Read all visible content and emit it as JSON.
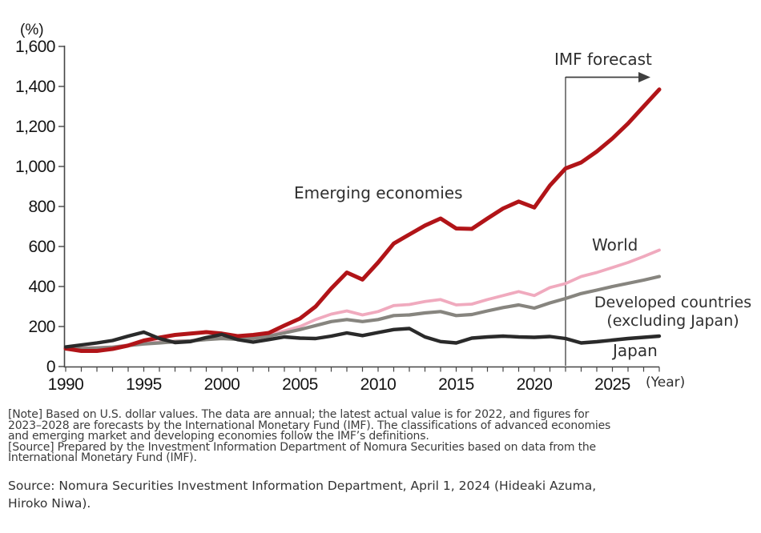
{
  "labels": {
    "unit": "(%)",
    "year": "(Year)",
    "imf_forecast": "IMF forecast",
    "emerging": "Emerging economies",
    "world": "World",
    "developed_1": "Developed countries",
    "developed_2": "(excluding Japan)",
    "japan": "Japan"
  },
  "notes": {
    "note": [
      "[Note] Based on U.S. dollar values. The data are annual; the latest actual value is for 2022, and figures for",
      "2023–2028 are forecasts by the International Monetary Fund (IMF). The classifications of advanced economies",
      "and emerging market and developing economies follow the IMF’s definitions."
    ],
    "source_note": [
      "[Source] Prepared by the Investment Information Department of Nomura Securities based on data from the",
      "International Monetary Fund (IMF)."
    ],
    "credit": [
      "Source: Nomura Securities Investment Information Department, April 1, 2024 (Hideaki Azuma,",
      "Hiroko Niwa)."
    ]
  },
  "chart_data": {
    "type": "line",
    "title": "",
    "ylabel": "(%)",
    "xlabel": "(Year)",
    "xlim": [
      1990,
      2028
    ],
    "ylim": [
      0,
      1600
    ],
    "grid": false,
    "legend_position": "inline-labels",
    "forecast_start_year": 2022,
    "forecast_label": "IMF forecast",
    "y_ticks": [
      0,
      200,
      400,
      600,
      800,
      1000,
      1200,
      1400,
      1600
    ],
    "y_tick_labels": [
      "0",
      "200",
      "400",
      "600",
      "800",
      "1,000",
      "1,200",
      "1,400",
      "1,600"
    ],
    "x_tick_years": [
      1990,
      1995,
      2000,
      2005,
      2010,
      2015,
      2020,
      2025
    ],
    "x_tick_labels": [
      "1990",
      "1995",
      "2000",
      "2005",
      "2010",
      "2015",
      "2020",
      "2025"
    ],
    "x": [
      1990,
      1991,
      1992,
      1993,
      1994,
      1995,
      1996,
      1997,
      1998,
      1999,
      2000,
      2001,
      2002,
      2003,
      2004,
      2005,
      2006,
      2007,
      2008,
      2009,
      2010,
      2011,
      2012,
      2013,
      2014,
      2015,
      2016,
      2017,
      2018,
      2019,
      2020,
      2021,
      2022,
      2023,
      2024,
      2025,
      2026,
      2027,
      2028
    ],
    "series": [
      {
        "name": "World",
        "color": "#f0aabe",
        "stroke_width": 3.8,
        "values": [
          95,
          93,
          95,
          98,
          108,
          118,
          122,
          128,
          130,
          138,
          142,
          138,
          142,
          158,
          178,
          200,
          235,
          262,
          278,
          258,
          275,
          305,
          310,
          325,
          335,
          308,
          312,
          335,
          355,
          375,
          355,
          395,
          415,
          450,
          470,
          495,
          520,
          550,
          582
        ]
      },
      {
        "name": "Developed countries (excluding Japan)",
        "color": "#87857f",
        "stroke_width": 4.2,
        "values": [
          88,
          90,
          93,
          97,
          105,
          113,
          118,
          124,
          128,
          135,
          140,
          136,
          140,
          152,
          168,
          185,
          205,
          225,
          235,
          225,
          235,
          255,
          258,
          268,
          275,
          255,
          260,
          278,
          295,
          308,
          292,
          318,
          340,
          365,
          382,
          400,
          416,
          432,
          450
        ]
      },
      {
        "name": "Emerging economies",
        "color": "#b11418",
        "stroke_width": 5,
        "values": [
          90,
          78,
          78,
          88,
          105,
          130,
          145,
          158,
          165,
          172,
          165,
          152,
          158,
          168,
          205,
          240,
          300,
          390,
          470,
          435,
          520,
          615,
          660,
          705,
          740,
          690,
          688,
          740,
          790,
          825,
          795,
          905,
          990,
          1020,
          1075,
          1140,
          1215,
          1300,
          1385
        ]
      },
      {
        "name": "Japan",
        "color": "#2a2a2a",
        "stroke_width": 4.4,
        "values": [
          98,
          108,
          118,
          130,
          152,
          172,
          140,
          120,
          125,
          145,
          160,
          135,
          122,
          135,
          148,
          142,
          140,
          152,
          168,
          155,
          170,
          185,
          190,
          148,
          125,
          118,
          142,
          148,
          152,
          148,
          146,
          150,
          140,
          118,
          124,
          132,
          140,
          146,
          152
        ]
      }
    ]
  }
}
